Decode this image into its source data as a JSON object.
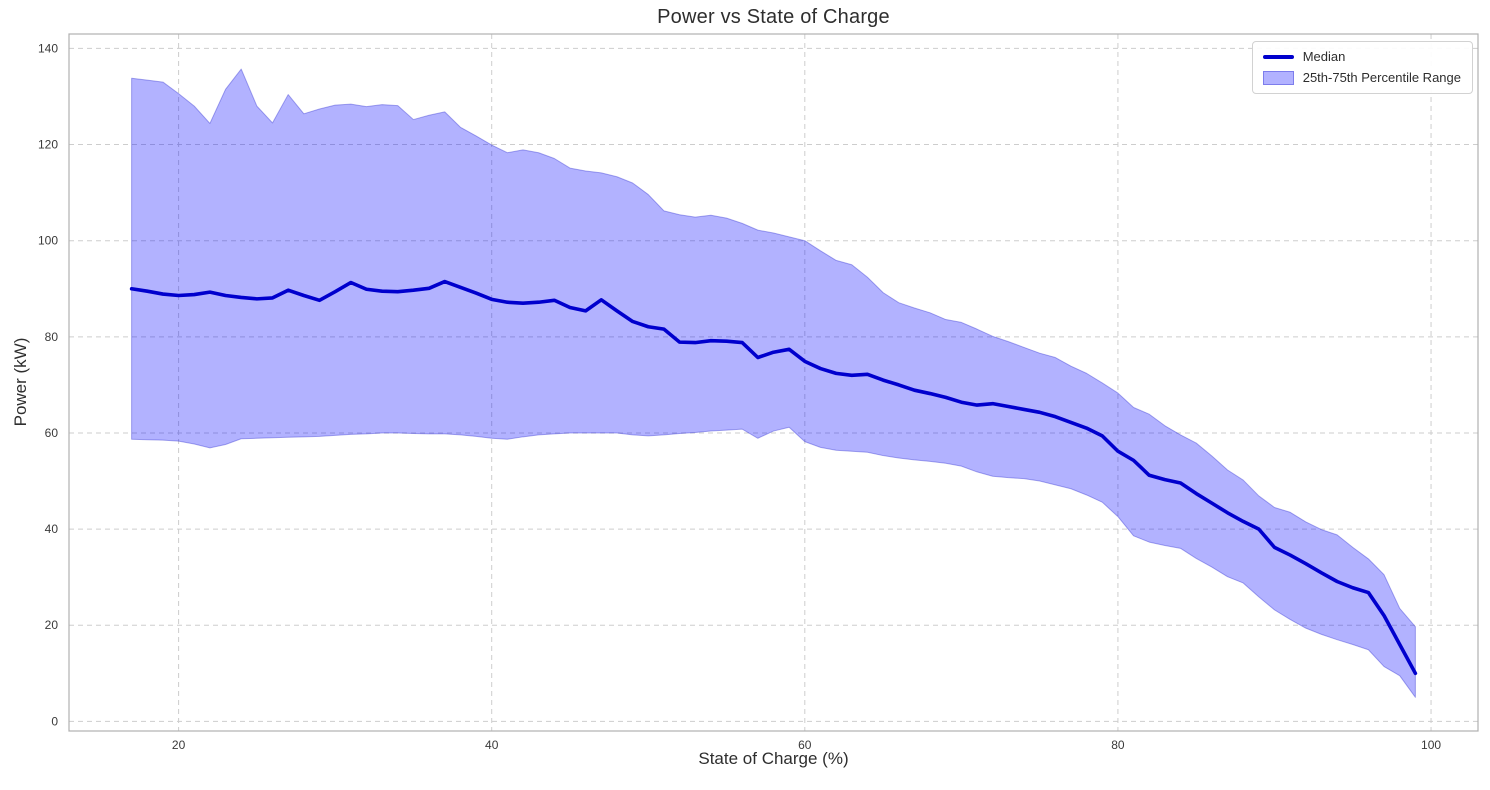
{
  "chart_data": {
    "type": "line",
    "title": "Power vs State of Charge",
    "xlabel": "State of Charge (%)",
    "ylabel": "Power (kW)",
    "xlim": [
      13,
      103
    ],
    "ylim": [
      -2,
      143
    ],
    "xticks": [
      20,
      40,
      60,
      80,
      100
    ],
    "yticks": [
      0,
      20,
      40,
      60,
      80,
      100,
      120,
      140
    ],
    "grid": true,
    "grid_style": "dashed",
    "legend": {
      "position": "upper right",
      "entries": [
        {
          "swatch": "line",
          "label": "Median"
        },
        {
          "swatch": "patch",
          "label": "25th-75th Percentile Range"
        }
      ]
    },
    "colors": {
      "median_line": "#0000cd",
      "band_fill": "rgba(0,0,255,0.30)",
      "band_edge": "rgba(40,40,205,0.38)",
      "grid": "#cdcdcd",
      "spine": "#b0b0b0",
      "tick_text": "#3a3a3a"
    },
    "x": [
      17,
      18,
      19,
      20,
      21,
      22,
      23,
      24,
      25,
      26,
      27,
      28,
      29,
      30,
      31,
      32,
      33,
      34,
      35,
      36,
      37,
      38,
      39,
      40,
      41,
      42,
      43,
      44,
      45,
      46,
      47,
      48,
      49,
      50,
      51,
      52,
      53,
      54,
      55,
      56,
      57,
      58,
      59,
      60,
      61,
      62,
      63,
      64,
      65,
      66,
      67,
      68,
      69,
      70,
      71,
      72,
      73,
      74,
      75,
      76,
      77,
      78,
      79,
      80,
      81,
      82,
      83,
      84,
      85,
      86,
      87,
      88,
      89,
      90,
      91,
      92,
      93,
      94,
      95,
      96,
      97,
      98,
      99
    ],
    "series": [
      {
        "name": "Median",
        "type": "line",
        "values": [
          90.0,
          89.5,
          88.9,
          88.6,
          88.8,
          89.3,
          88.6,
          88.2,
          87.9,
          88.1,
          89.7,
          88.6,
          87.6,
          89.4,
          91.3,
          89.9,
          89.5,
          89.4,
          89.7,
          90.1,
          91.5,
          90.3,
          89.1,
          87.8,
          87.2,
          87.0,
          87.2,
          87.6,
          86.1,
          85.4,
          87.7,
          85.4,
          83.2,
          82.1,
          81.6,
          78.9,
          78.8,
          79.2,
          79.1,
          78.8,
          75.7,
          76.8,
          77.4,
          74.9,
          73.4,
          72.4,
          72.0,
          72.2,
          71.0,
          70.0,
          68.9,
          68.2,
          67.4,
          66.4,
          65.8,
          66.1,
          65.5,
          64.9,
          64.3,
          63.4,
          62.2,
          61.0,
          59.4,
          56.2,
          54.3,
          51.2,
          50.3,
          49.6,
          47.4,
          45.4,
          43.4,
          41.6,
          40.0,
          36.2,
          34.6,
          32.8,
          30.9,
          29.1,
          27.8,
          26.8,
          22.0,
          16.0,
          10.0
        ]
      },
      {
        "name": "25th-75th Percentile Range",
        "type": "band",
        "upper": [
          133.8,
          133.4,
          133.0,
          130.6,
          128.0,
          124.4,
          131.5,
          135.7,
          128.0,
          124.5,
          130.4,
          126.4,
          127.4,
          128.2,
          128.4,
          127.9,
          128.3,
          128.1,
          125.2,
          126.1,
          126.8,
          123.6,
          121.8,
          119.9,
          118.3,
          118.9,
          118.3,
          117.1,
          115.1,
          114.5,
          114.1,
          113.3,
          112.0,
          109.6,
          106.2,
          105.4,
          104.9,
          105.3,
          104.7,
          103.6,
          102.2,
          101.6,
          100.8,
          100.0,
          97.9,
          95.9,
          95.0,
          92.4,
          89.2,
          87.1,
          86.0,
          85.0,
          83.6,
          83.0,
          81.6,
          80.1,
          79.0,
          77.8,
          76.6,
          75.7,
          73.9,
          72.4,
          70.4,
          68.3,
          65.3,
          63.9,
          61.5,
          59.6,
          57.9,
          55.2,
          52.3,
          50.2,
          46.9,
          44.5,
          43.5,
          41.5,
          39.9,
          38.8,
          36.2,
          33.8,
          30.5,
          23.5,
          19.7
        ],
        "lower": [
          58.7,
          58.6,
          58.5,
          58.3,
          57.7,
          56.9,
          57.6,
          58.8,
          58.9,
          59.0,
          59.1,
          59.2,
          59.3,
          59.5,
          59.7,
          59.8,
          60.0,
          60.0,
          59.9,
          59.8,
          59.8,
          59.6,
          59.3,
          58.9,
          58.7,
          59.2,
          59.6,
          59.8,
          60.0,
          60.0,
          60.0,
          60.0,
          59.6,
          59.4,
          59.6,
          59.9,
          60.1,
          60.4,
          60.6,
          60.8,
          58.9,
          60.4,
          61.2,
          58.2,
          57.0,
          56.4,
          56.2,
          56.0,
          55.3,
          54.8,
          54.4,
          54.1,
          53.7,
          53.1,
          51.9,
          51.0,
          50.7,
          50.5,
          50.0,
          49.2,
          48.4,
          47.1,
          45.6,
          42.6,
          38.6,
          37.3,
          36.6,
          36.0,
          33.9,
          32.1,
          30.1,
          28.8,
          25.9,
          23.2,
          21.2,
          19.4,
          18.1,
          17.0,
          16.0,
          14.9,
          11.4,
          9.5,
          5.0
        ]
      }
    ]
  }
}
